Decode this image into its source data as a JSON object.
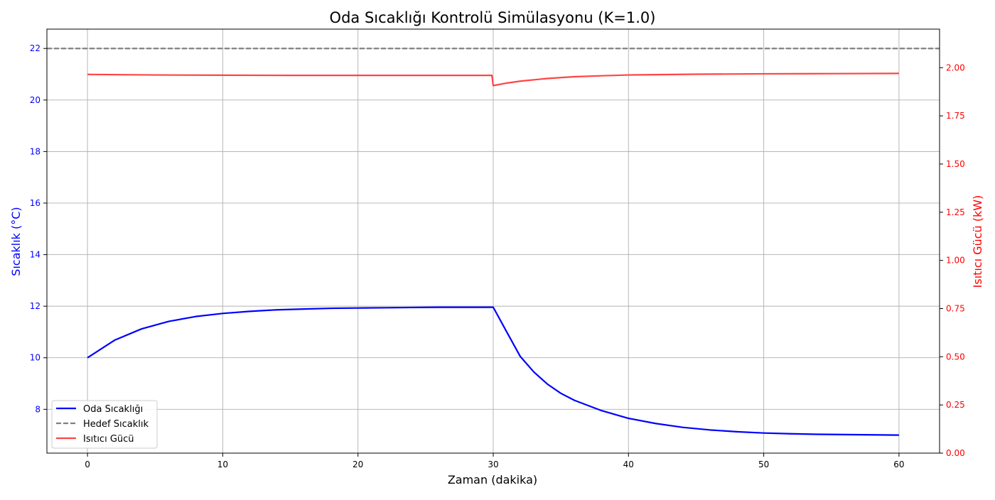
{
  "chart_data": {
    "type": "line",
    "title": "Oda Sıcaklığı Kontrolü Simülasyonu (K=1.0)",
    "xlabel": "Zaman (dakika)",
    "ylabel_left": "Sıcaklık (°C)",
    "ylabel_right": "Isıtıcı Gücü (kW)",
    "xlim": [
      -3,
      63
    ],
    "ylim_left": [
      6.3,
      22.75
    ],
    "ylim_right": [
      0.0,
      2.2
    ],
    "xticks": [
      0,
      10,
      20,
      30,
      40,
      50,
      60
    ],
    "xtick_labels": [
      "0",
      "10",
      "20",
      "30",
      "40",
      "50",
      "60"
    ],
    "yticks_left": [
      8,
      10,
      12,
      14,
      16,
      18,
      20,
      22
    ],
    "ytick_labels_left": [
      "8",
      "10",
      "12",
      "14",
      "16",
      "18",
      "20",
      "22"
    ],
    "yticks_right": [
      0.0,
      0.25,
      0.5,
      0.75,
      1.0,
      1.25,
      1.5,
      1.75,
      2.0
    ],
    "ytick_labels_right": [
      "0.00",
      "0.25",
      "0.50",
      "0.75",
      "1.00",
      "1.25",
      "1.50",
      "1.75",
      "2.00"
    ],
    "grid": true,
    "legend_position": "lower-left",
    "legend": [
      "Oda Sıcaklığı",
      "Hedef Sıcaklık",
      "Isıtıcı Gücü"
    ],
    "series": [
      {
        "name": "Oda Sıcaklığı",
        "axis": "left",
        "color": "#0000ff",
        "style": "solid",
        "x": [
          0,
          2,
          4,
          6,
          8,
          10,
          12,
          14,
          16,
          18,
          20,
          22,
          24,
          26,
          28,
          30,
          31,
          32,
          33,
          34,
          35,
          36,
          38,
          40,
          42,
          44,
          46,
          48,
          50,
          52,
          54,
          56,
          58,
          60
        ],
        "y": [
          10.0,
          10.68,
          11.12,
          11.41,
          11.6,
          11.72,
          11.8,
          11.86,
          11.89,
          11.92,
          11.93,
          11.94,
          11.95,
          11.96,
          11.96,
          11.96,
          11.0,
          10.05,
          9.45,
          8.98,
          8.62,
          8.35,
          7.95,
          7.65,
          7.45,
          7.3,
          7.2,
          7.13,
          7.08,
          7.05,
          7.03,
          7.02,
          7.01,
          7.0
        ]
      },
      {
        "name": "Hedef Sıcaklık",
        "axis": "left",
        "color": "#808080",
        "style": "dashed",
        "x": [
          -3,
          63
        ],
        "y": [
          22,
          22
        ]
      },
      {
        "name": "Isıtıcı Gücü",
        "axis": "right",
        "color": "#ff4444",
        "style": "solid",
        "x": [
          0,
          5,
          10,
          15,
          20,
          25,
          29.9,
          30,
          31,
          32,
          34,
          36,
          38,
          40,
          45,
          50,
          55,
          60
        ],
        "y": [
          1.965,
          1.962,
          1.961,
          1.96,
          1.96,
          1.96,
          1.96,
          1.907,
          1.92,
          1.93,
          1.944,
          1.953,
          1.958,
          1.962,
          1.966,
          1.968,
          1.969,
          1.97
        ]
      }
    ]
  }
}
